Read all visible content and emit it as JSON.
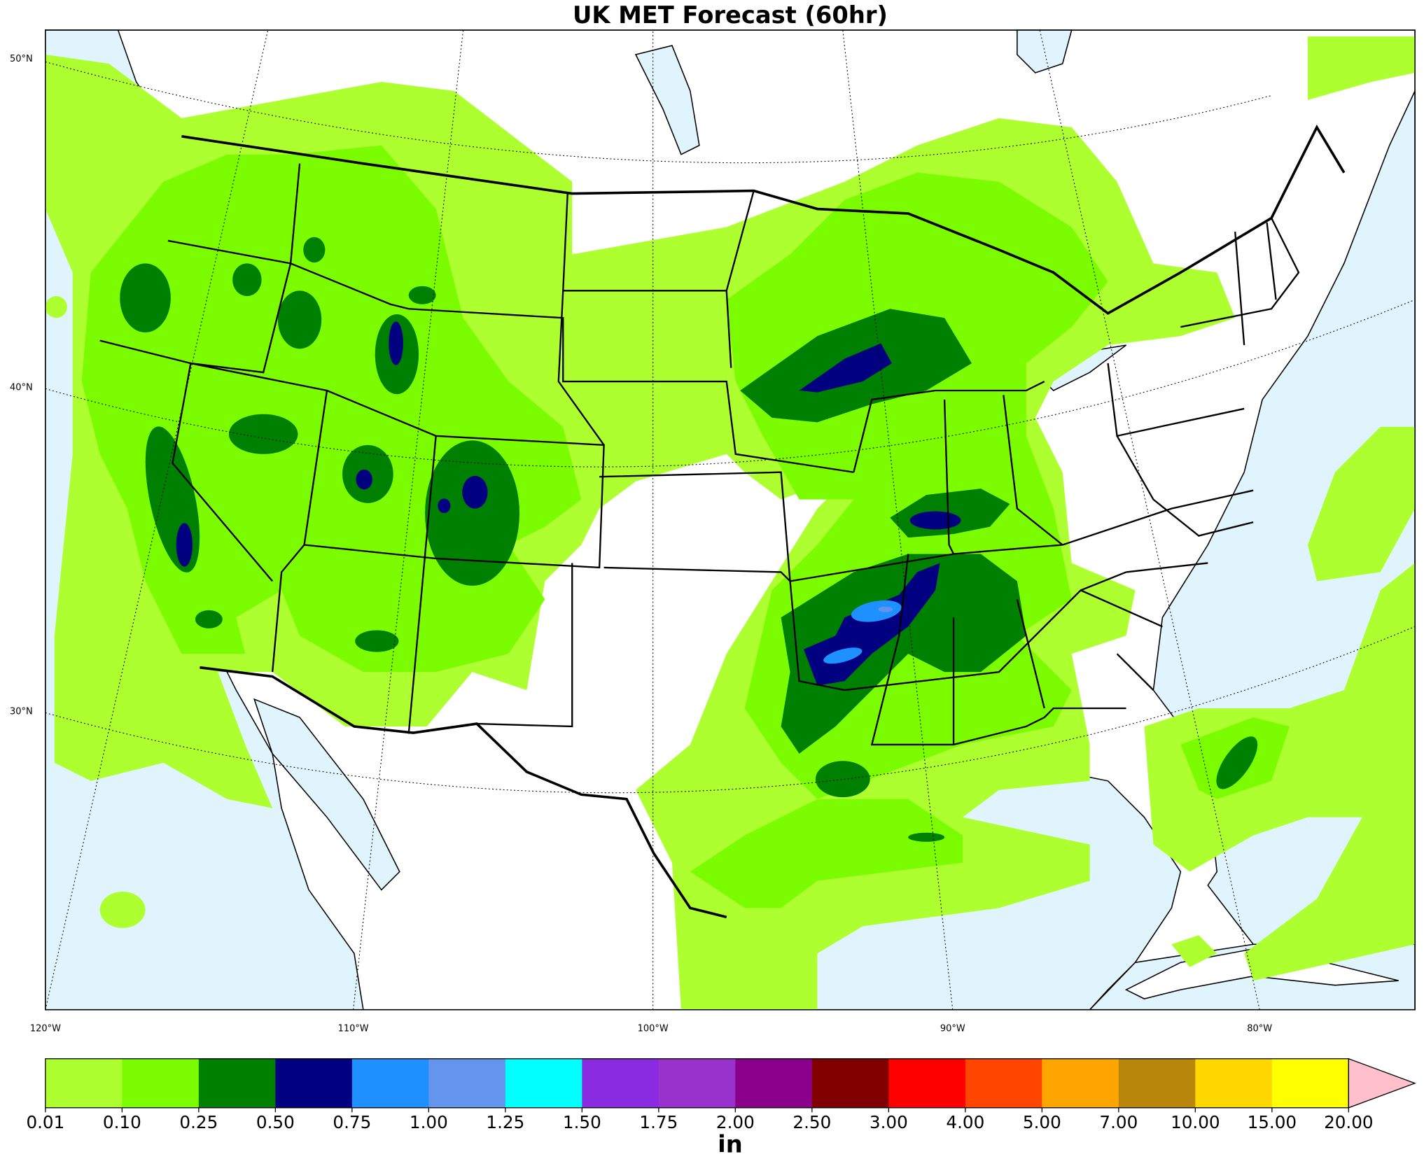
{
  "title": "UK MET Forecast (60hr)",
  "map": {
    "lat_labels": [
      "50°N",
      "40°N",
      "30°N"
    ],
    "lon_labels": [
      "120°W",
      "110°W",
      "100°W",
      "90°W",
      "80°W"
    ]
  },
  "colorbar": {
    "label": "in",
    "ticks": [
      0.01,
      {
        "value": 0.1,
        "label": "0.10"
      },
      0.25,
      {
        "value": 0.5,
        "label": "0.50"
      },
      0.75,
      {
        "value": 1,
        "label": "1.00"
      },
      1.25,
      {
        "value": 1.5,
        "label": "1.50"
      },
      1.75,
      {
        "value": 2,
        "label": "2.00"
      },
      {
        "value": 2.5,
        "label": "2.50"
      },
      {
        "value": 3,
        "label": "3.00"
      },
      {
        "value": 4,
        "label": "4.00"
      },
      {
        "value": 5,
        "label": "5.00"
      },
      {
        "value": 7,
        "label": "7.00"
      },
      {
        "value": 10,
        "label": "10.00"
      },
      {
        "value": 15,
        "label": "15.00"
      },
      {
        "value": 20,
        "label": "20.00"
      }
    ],
    "colors": [
      "#adff2f",
      "#7cfc00",
      "#008000",
      "#000080",
      "#1e90ff",
      "#6495ed",
      "#00ffff",
      "#8a2be2",
      "#9932cc",
      "#8b008b",
      "#800000",
      "#ff0000",
      "#ff4500",
      "#ffa500",
      "#b8860b",
      "#ffd700",
      "#ffff00"
    ],
    "extend_color": "#ffc0cb"
  }
}
